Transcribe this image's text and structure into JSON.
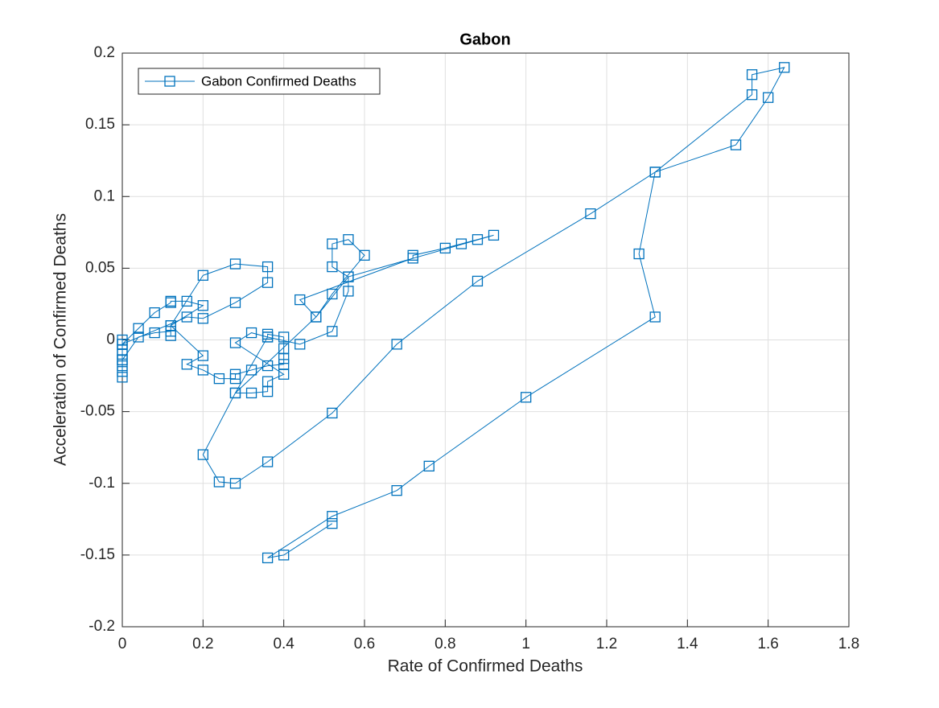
{
  "chart_data": {
    "type": "line",
    "title": "Gabon",
    "xlabel": "Rate of Confirmed Deaths",
    "ylabel": "Acceleration of Confirmed Deaths",
    "xlim": [
      0,
      1.8
    ],
    "xticks": [
      0,
      0.2,
      0.4,
      0.6,
      0.8,
      1,
      1.2,
      1.4,
      1.6,
      1.8
    ],
    "ylim": [
      -0.2,
      0.2
    ],
    "yticks": [
      -0.2,
      -0.15,
      -0.1,
      -0.05,
      0,
      0.05,
      0.1,
      0.15,
      0.2
    ],
    "grid": true,
    "legend": "northwest",
    "marker": "square",
    "x": [
      0,
      0,
      0,
      0,
      0,
      0,
      0,
      0,
      0,
      0.04,
      0.08,
      0.12,
      0.12,
      0.12,
      0.2,
      0.16,
      0.12,
      0.12,
      0.08,
      0.04,
      0,
      0.16,
      0.2,
      0.28,
      0.36,
      0.36,
      0.28,
      0.2,
      0.12,
      0.2,
      0.16,
      0.2,
      0.24,
      0.28,
      0.28,
      0.32,
      0.36,
      0.4,
      0.4,
      0.4,
      0.4,
      0.36,
      0.36,
      0.32,
      0.28,
      0.4,
      0.36,
      0.36,
      0.32,
      0.28,
      0.36,
      0.44,
      0.52,
      0.56,
      0.56,
      0.52,
      0.52,
      0.56,
      0.6,
      0.52,
      0.48,
      0.44,
      0.72,
      0.72,
      0.8,
      0.84,
      0.88,
      0.92,
      0.56,
      0.48,
      0.28,
      0.2,
      0.24,
      0.28,
      0.36,
      0.52,
      0.68,
      0.88,
      1.16,
      1.32,
      1.52,
      1.6,
      1.64,
      1.56,
      1.56,
      1.32,
      1.28,
      1.32,
      1,
      0.76,
      0.68,
      0.52,
      0.36,
      0.4,
      0.52
    ],
    "series": [
      {
        "name": "Gabon Confirmed Deaths",
        "color": "#0072bd",
        "values": [
          0,
          -0.003,
          -0.007,
          -0.01,
          -0.014,
          -0.018,
          -0.022,
          -0.026,
          -0.014,
          0.002,
          0.005,
          0.006,
          0.003,
          0.01,
          0.024,
          0.027,
          0.027,
          0.026,
          0.019,
          0.008,
          -0.003,
          0.016,
          0.015,
          0.026,
          0.04,
          0.051,
          0.053,
          0.045,
          0.01,
          -0.011,
          -0.017,
          -0.021,
          -0.027,
          -0.027,
          -0.024,
          -0.021,
          -0.018,
          -0.017,
          -0.013,
          -0.006,
          0.002,
          0.004,
          0.002,
          0.005,
          -0.002,
          -0.024,
          -0.029,
          -0.036,
          -0.037,
          -0.037,
          0.002,
          -0.003,
          0.006,
          0.034,
          0.044,
          0.051,
          0.067,
          0.07,
          0.059,
          0.032,
          0.016,
          0.028,
          0.057,
          0.059,
          0.064,
          0.067,
          0.07,
          0.073,
          0.044,
          0.016,
          -0.037,
          -0.08,
          -0.099,
          -0.1,
          -0.085,
          -0.051,
          -0.003,
          0.041,
          0.088,
          0.117,
          0.136,
          0.169,
          0.19,
          0.185,
          0.171,
          0.117,
          0.06,
          0.016,
          -0.04,
          -0.088,
          -0.105,
          -0.123,
          -0.152,
          -0.15,
          -0.128
        ]
      }
    ]
  }
}
